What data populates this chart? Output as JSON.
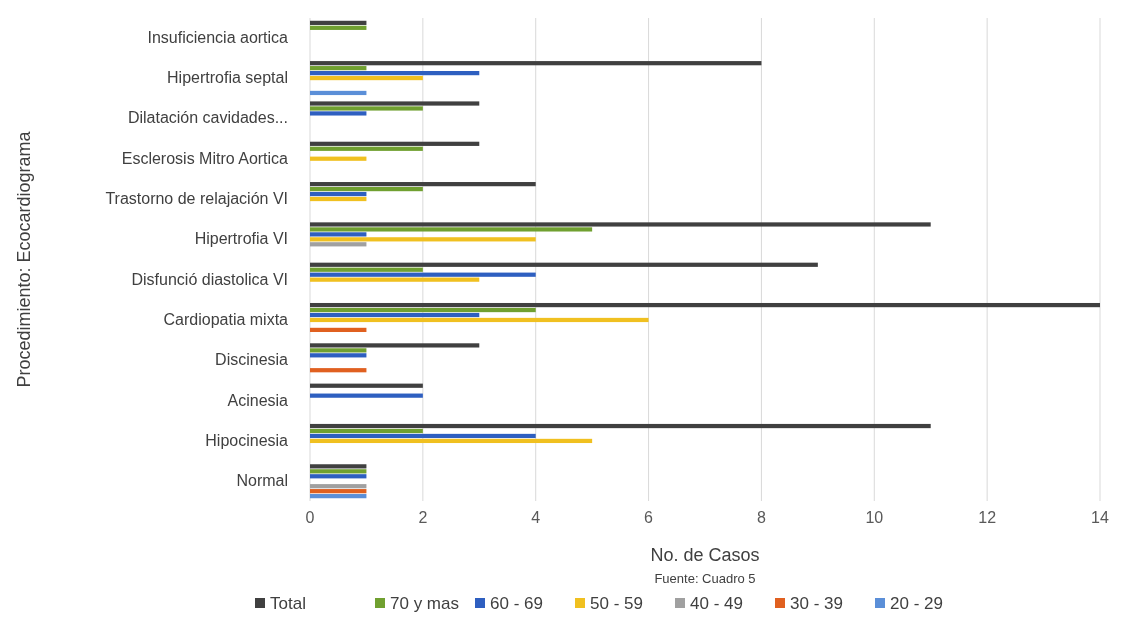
{
  "chart_data": {
    "type": "bar",
    "orientation": "horizontal",
    "xlabel": "No. de Casos",
    "ylabel": "Procedimiento: Ecocardiograma",
    "annotations": [
      "Fuente: Cuadro 5"
    ],
    "categories": [
      "Insuficiencia aortica",
      "Hipertrofia septal",
      "Dilatación cavidades...",
      "Esclerosis Mitro Aortica",
      "Trastorno de relajación VI",
      "Hipertrofia VI",
      "Disfunció diastolica VI",
      "Cardiopatia mixta",
      "Discinesia",
      "Acinesia",
      "Hipocinesia",
      "Normal"
    ],
    "series": [
      {
        "name": "Total",
        "color": "#404040",
        "values": [
          1,
          8,
          3,
          3,
          4,
          11,
          9,
          14,
          3,
          2,
          11,
          1
        ]
      },
      {
        "name": "70 y mas",
        "color": "#70a030",
        "values": [
          1,
          1,
          2,
          2,
          2,
          5,
          2,
          4,
          1,
          0,
          2,
          1
        ]
      },
      {
        "name": "60 - 69",
        "color": "#2e5fc0",
        "values": [
          0,
          3,
          1,
          0,
          1,
          1,
          4,
          3,
          1,
          2,
          4,
          1
        ]
      },
      {
        "name": "50 - 59",
        "color": "#f0c020",
        "values": [
          0,
          2,
          0,
          1,
          1,
          4,
          3,
          6,
          0,
          0,
          5,
          0
        ]
      },
      {
        "name": "40 - 49",
        "color": "#a0a0a0",
        "values": [
          0,
          0,
          0,
          0,
          0,
          1,
          0,
          0,
          0,
          0,
          0,
          1
        ]
      },
      {
        "name": "30 - 39",
        "color": "#e06020",
        "values": [
          0,
          0,
          0,
          0,
          0,
          0,
          0,
          1,
          1,
          0,
          0,
          1
        ]
      },
      {
        "name": "20 - 29",
        "color": "#5b8fd8",
        "values": [
          0,
          1,
          0,
          0,
          0,
          0,
          0,
          0,
          0,
          0,
          0,
          1
        ]
      }
    ],
    "xlim": [
      0,
      14
    ],
    "xticks": [
      0,
      2,
      4,
      6,
      8,
      10,
      12,
      14
    ],
    "grid": "x",
    "legend": "bottom"
  }
}
